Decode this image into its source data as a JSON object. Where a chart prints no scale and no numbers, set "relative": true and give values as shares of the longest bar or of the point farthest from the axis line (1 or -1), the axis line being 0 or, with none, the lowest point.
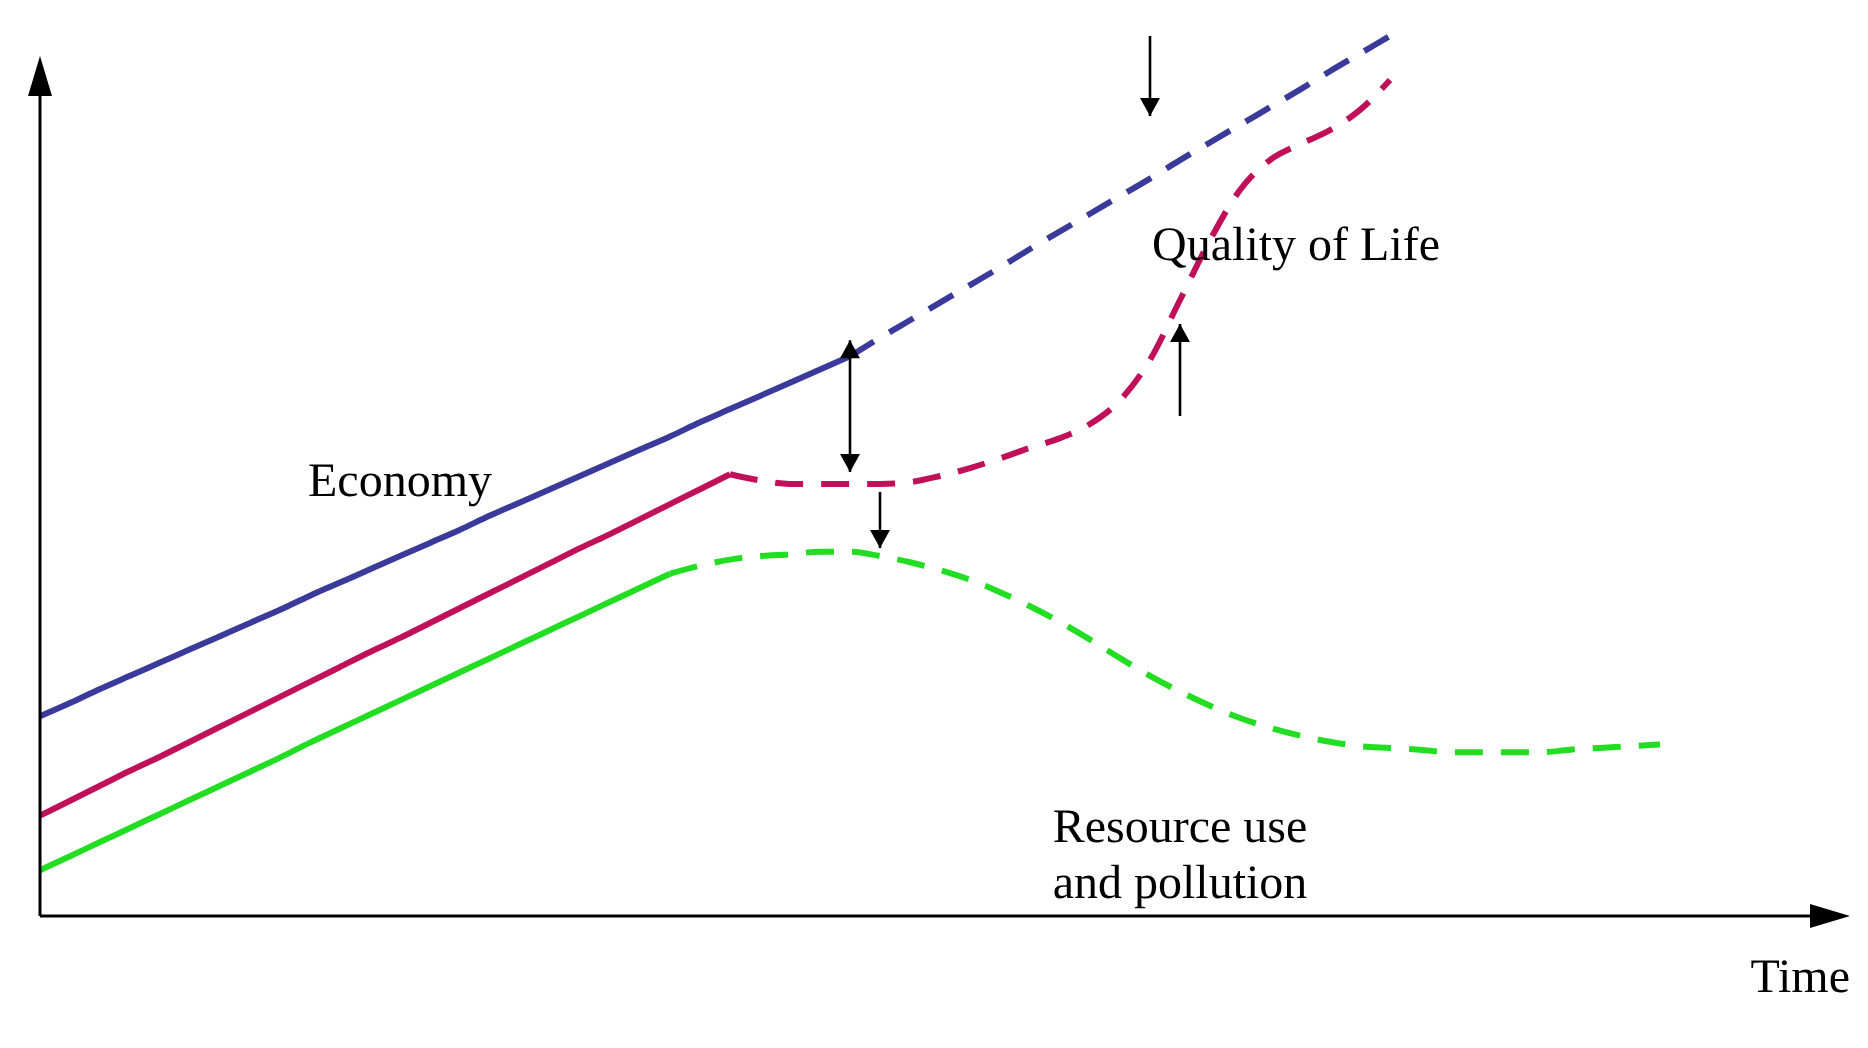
{
  "chart_data": {
    "type": "line",
    "relative": true,
    "xlabel": "Time",
    "categories": [
      null,
      null,
      null,
      null,
      null,
      null,
      null,
      null,
      null,
      null,
      null,
      null,
      null,
      null,
      null,
      null,
      null,
      null,
      null,
      null,
      null,
      null,
      null,
      null,
      null,
      null,
      null,
      null,
      null,
      null,
      null,
      null,
      null,
      null,
      null,
      null,
      null,
      null,
      null,
      null,
      null,
      null,
      null,
      null,
      null,
      null,
      null,
      null,
      null,
      null,
      null,
      null,
      null,
      null,
      null
    ],
    "series": [
      {
        "name": "Economy",
        "color": "#3a3a9a",
        "line_style": "solid",
        "values": [
          0.227,
          0.242,
          0.258,
          0.273,
          0.288,
          0.303,
          0.318,
          0.333,
          0.348,
          0.364,
          0.379,
          0.394,
          0.409,
          0.424,
          0.439,
          0.455,
          0.47,
          0.485,
          0.5,
          0.515,
          0.53,
          0.545,
          0.561,
          0.576,
          0.591,
          0.606,
          0.621,
          0.636,
          null,
          null,
          null,
          null,
          null,
          null,
          null,
          null,
          null,
          null,
          null,
          null,
          null,
          null,
          null,
          null,
          null,
          null,
          null,
          null,
          null,
          null,
          null,
          null,
          null,
          null,
          null
        ]
      },
      {
        "color": "#3a3a9a",
        "line_style": "dashed",
        "values": [
          null,
          null,
          null,
          null,
          null,
          null,
          null,
          null,
          null,
          null,
          null,
          null,
          null,
          null,
          null,
          null,
          null,
          null,
          null,
          null,
          null,
          null,
          null,
          null,
          null,
          null,
          null,
          0.636,
          0.657,
          0.677,
          0.697,
          0.717,
          0.737,
          0.758,
          0.778,
          0.798,
          0.818,
          0.838,
          0.859,
          0.879,
          0.899,
          0.919,
          0.939,
          0.96,
          0.98,
          1,
          null,
          null,
          null,
          null,
          null,
          null,
          null,
          null,
          null
        ]
      },
      {
        "color": "#c0105a",
        "line_style": "solid",
        "values": [
          0.114,
          0.131,
          0.148,
          0.165,
          0.181,
          0.198,
          0.215,
          0.232,
          0.249,
          0.266,
          0.283,
          0.3,
          0.316,
          0.333,
          0.35,
          0.367,
          0.384,
          0.401,
          0.418,
          0.434,
          0.451,
          0.468,
          0.485,
          0.502,
          null,
          null,
          null,
          null,
          null,
          null,
          null,
          null,
          null,
          null,
          null,
          null,
          null,
          null,
          null,
          null,
          null,
          null,
          null,
          null,
          null,
          null,
          null,
          null,
          null,
          null,
          null,
          null,
          null,
          null,
          null
        ]
      },
      {
        "name": "Quality of Life",
        "color": "#c0105a",
        "line_style": "dashed",
        "values": [
          null,
          null,
          null,
          null,
          null,
          null,
          null,
          null,
          null,
          null,
          null,
          null,
          null,
          null,
          null,
          null,
          null,
          null,
          null,
          null,
          null,
          null,
          null,
          0.502,
          0.495,
          0.491,
          0.491,
          0.491,
          0.491,
          0.493,
          0.5,
          0.509,
          0.52,
          0.532,
          0.543,
          0.559,
          0.586,
          0.632,
          0.7,
          0.768,
          0.825,
          0.859,
          0.877,
          0.893,
          0.916,
          0.95,
          null,
          null,
          null,
          null,
          null,
          null,
          null,
          null,
          null
        ]
      },
      {
        "color": "#22dd22",
        "line_style": "solid",
        "values": [
          0.052,
          0.068,
          0.084,
          0.1,
          0.116,
          0.132,
          0.148,
          0.164,
          0.18,
          0.197,
          0.213,
          0.229,
          0.245,
          0.261,
          0.277,
          0.293,
          0.309,
          0.325,
          0.341,
          0.357,
          0.373,
          0.389,
          null,
          null,
          null,
          null,
          null,
          null,
          null,
          null,
          null,
          null,
          null,
          null,
          null,
          null,
          null,
          null,
          null,
          null,
          null,
          null,
          null,
          null,
          null,
          null,
          null,
          null,
          null,
          null,
          null,
          null,
          null,
          null,
          null
        ]
      },
      {
        "name": "Resource use and pollution",
        "color": "#22dd22",
        "line_style": "dashed",
        "values": [
          null,
          null,
          null,
          null,
          null,
          null,
          null,
          null,
          null,
          null,
          null,
          null,
          null,
          null,
          null,
          null,
          null,
          null,
          null,
          null,
          null,
          0.389,
          0.398,
          0.405,
          0.409,
          0.411,
          0.414,
          0.414,
          0.409,
          0.402,
          0.393,
          0.382,
          0.368,
          0.352,
          0.334,
          0.314,
          0.293,
          0.273,
          0.255,
          0.239,
          0.225,
          0.214,
          0.205,
          0.198,
          0.193,
          0.191,
          0.189,
          0.186,
          0.186,
          0.186,
          0.186,
          0.189,
          0.191,
          0.193,
          0.195
        ]
      }
    ]
  }
}
